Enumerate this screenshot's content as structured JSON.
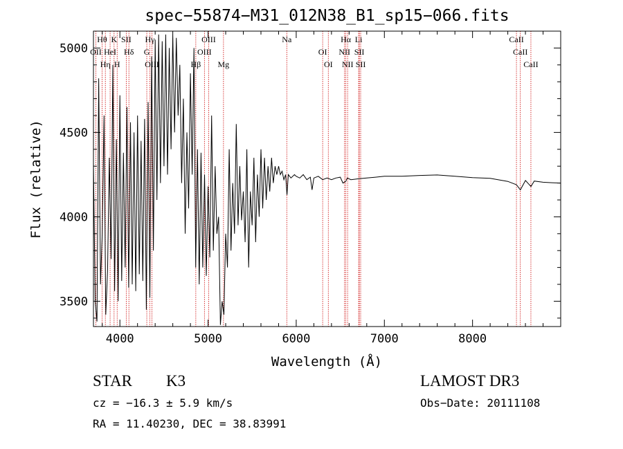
{
  "chart_data": {
    "type": "line",
    "title": "spec−55874−M31_012N38_B1_sp15−066.fits",
    "xlabel": "Wavelength (Å)",
    "ylabel": "Flux (relative)",
    "xlim": [
      3700,
      9000
    ],
    "ylim": [
      3350,
      5100
    ],
    "x_ticks": [
      4000,
      5000,
      6000,
      7000,
      8000
    ],
    "y_ticks": [
      3500,
      4000,
      4500,
      5000
    ],
    "series": [
      {
        "name": "flux",
        "points": [
          [
            3700,
            4320
          ],
          [
            3720,
            3500
          ],
          [
            3740,
            3380
          ],
          [
            3760,
            4820
          ],
          [
            3780,
            3600
          ],
          [
            3800,
            3900
          ],
          [
            3820,
            4600
          ],
          [
            3840,
            3420
          ],
          [
            3860,
            3680
          ],
          [
            3880,
            4350
          ],
          [
            3900,
            3750
          ],
          [
            3920,
            4900
          ],
          [
            3940,
            3560
          ],
          [
            3960,
            4460
          ],
          [
            3980,
            3500
          ],
          [
            4000,
            4720
          ],
          [
            4020,
            3620
          ],
          [
            4040,
            4380
          ],
          [
            4060,
            3700
          ],
          [
            4080,
            4650
          ],
          [
            4100,
            3580
          ],
          [
            4120,
            4560
          ],
          [
            4140,
            3600
          ],
          [
            4160,
            4500
          ],
          [
            4180,
            3560
          ],
          [
            4200,
            4600
          ],
          [
            4220,
            3660
          ],
          [
            4240,
            4450
          ],
          [
            4260,
            3620
          ],
          [
            4280,
            4580
          ],
          [
            4300,
            3450
          ],
          [
            4320,
            4680
          ],
          [
            4340,
            3520
          ],
          [
            4360,
            4950
          ],
          [
            4380,
            3800
          ],
          [
            4400,
            5050
          ],
          [
            4420,
            4100
          ],
          [
            4440,
            5080
          ],
          [
            4460,
            4200
          ],
          [
            4480,
            5040
          ],
          [
            4500,
            4300
          ],
          [
            4520,
            5080
          ],
          [
            4540,
            4250
          ],
          [
            4560,
            5000
          ],
          [
            4580,
            4400
          ],
          [
            4600,
            5080
          ],
          [
            4620,
            4500
          ],
          [
            4640,
            5060
          ],
          [
            4660,
            4600
          ],
          [
            4680,
            4900
          ],
          [
            4700,
            4200
          ],
          [
            4720,
            4700
          ],
          [
            4740,
            3900
          ],
          [
            4760,
            4500
          ],
          [
            4780,
            4050
          ],
          [
            4800,
            4850
          ],
          [
            4820,
            4250
          ],
          [
            4840,
            5000
          ],
          [
            4860,
            3700
          ],
          [
            4880,
            4400
          ],
          [
            4900,
            3600
          ],
          [
            4920,
            4380
          ],
          [
            4940,
            3700
          ],
          [
            4960,
            4250
          ],
          [
            4980,
            3650
          ],
          [
            5000,
            4180
          ],
          [
            5020,
            3760
          ],
          [
            5040,
            4600
          ],
          [
            5060,
            3800
          ],
          [
            5080,
            4300
          ],
          [
            5100,
            3900
          ],
          [
            5120,
            4000
          ],
          [
            5140,
            3360
          ],
          [
            5160,
            3500
          ],
          [
            5180,
            3420
          ],
          [
            5200,
            3900
          ],
          [
            5220,
            3700
          ],
          [
            5240,
            4400
          ],
          [
            5260,
            3800
          ],
          [
            5280,
            4200
          ],
          [
            5300,
            3900
          ],
          [
            5320,
            4550
          ],
          [
            5340,
            3950
          ],
          [
            5360,
            4300
          ],
          [
            5380,
            3980
          ],
          [
            5400,
            4150
          ],
          [
            5420,
            3850
          ],
          [
            5440,
            4400
          ],
          [
            5460,
            3700
          ],
          [
            5480,
            4150
          ],
          [
            5500,
            3950
          ],
          [
            5520,
            4350
          ],
          [
            5540,
            3850
          ],
          [
            5560,
            4250
          ],
          [
            5580,
            4000
          ],
          [
            5600,
            4400
          ],
          [
            5620,
            4050
          ],
          [
            5640,
            4350
          ],
          [
            5660,
            4100
          ],
          [
            5680,
            4300
          ],
          [
            5700,
            4150
          ],
          [
            5720,
            4350
          ],
          [
            5740,
            4200
          ],
          [
            5760,
            4300
          ],
          [
            5780,
            4250
          ],
          [
            5800,
            4300
          ],
          [
            5820,
            4250
          ],
          [
            5840,
            4270
          ],
          [
            5860,
            4220
          ],
          [
            5880,
            4250
          ],
          [
            5895,
            4130
          ],
          [
            5910,
            4250
          ],
          [
            5940,
            4230
          ],
          [
            5980,
            4250
          ],
          [
            6000,
            4240
          ],
          [
            6040,
            4230
          ],
          [
            6080,
            4250
          ],
          [
            6120,
            4220
          ],
          [
            6160,
            4235
          ],
          [
            6180,
            4160
          ],
          [
            6200,
            4230
          ],
          [
            6250,
            4240
          ],
          [
            6300,
            4220
          ],
          [
            6350,
            4230
          ],
          [
            6400,
            4220
          ],
          [
            6450,
            4230
          ],
          [
            6500,
            4235
          ],
          [
            6530,
            4200
          ],
          [
            6562,
            4210
          ],
          [
            6580,
            4230
          ],
          [
            6620,
            4220
          ],
          [
            6700,
            4225
          ],
          [
            6800,
            4230
          ],
          [
            6900,
            4235
          ],
          [
            7000,
            4240
          ],
          [
            7200,
            4240
          ],
          [
            7400,
            4245
          ],
          [
            7600,
            4248
          ],
          [
            7800,
            4240
          ],
          [
            8000,
            4232
          ],
          [
            8200,
            4228
          ],
          [
            8400,
            4210
          ],
          [
            8498,
            4190
          ],
          [
            8542,
            4160
          ],
          [
            8600,
            4215
          ],
          [
            8662,
            4180
          ],
          [
            8700,
            4212
          ],
          [
            8800,
            4205
          ],
          [
            8900,
            4202
          ],
          [
            9000,
            4200
          ]
        ]
      }
    ],
    "lines": [
      {
        "label": "Hθ",
        "x": 3798
      },
      {
        "label": "OII",
        "x": 3727
      },
      {
        "label": "Hη",
        "x": 3835
      },
      {
        "label": "K",
        "x": 3934
      },
      {
        "label": "HeI",
        "x": 3889
      },
      {
        "label": "H",
        "x": 3969
      },
      {
        "label": "SII",
        "x": 4072
      },
      {
        "label": "Hδ",
        "x": 4102
      },
      {
        "label": "OIII",
        "x": 4363
      },
      {
        "label": "Hγ",
        "x": 4340
      },
      {
        "label": "G",
        "x": 4305
      },
      {
        "label": "Hβ",
        "x": 4861
      },
      {
        "label": "OIII",
        "x": 5007
      },
      {
        "label": "OIII",
        "x": 4959
      },
      {
        "label": "Mg",
        "x": 5175
      },
      {
        "label": "Na",
        "x": 5893
      },
      {
        "label": "OI",
        "x": 6300
      },
      {
        "label": "OI",
        "x": 6364
      },
      {
        "label": "Hα",
        "x": 6563
      },
      {
        "label": "NII",
        "x": 6548
      },
      {
        "label": "NII",
        "x": 6583
      },
      {
        "label": "Li",
        "x": 6708
      },
      {
        "label": "SII",
        "x": 6716
      },
      {
        "label": "SII",
        "x": 6731
      },
      {
        "label": "CaII",
        "x": 8498
      },
      {
        "label": "CaII",
        "x": 8542
      },
      {
        "label": "CaII",
        "x": 8662
      }
    ]
  },
  "info": {
    "class": "STAR",
    "subclass": "K3",
    "survey": "LAMOST DR3",
    "cz": "cz = −16.3 ± 5.9 km/s",
    "obs_date": "Obs−Date: 20111108",
    "radec": "RA =  11.40230, DEC =  38.83991"
  },
  "colors": {
    "line_marker": "#cc0000",
    "spectrum": "#000000",
    "axis": "#000000"
  }
}
